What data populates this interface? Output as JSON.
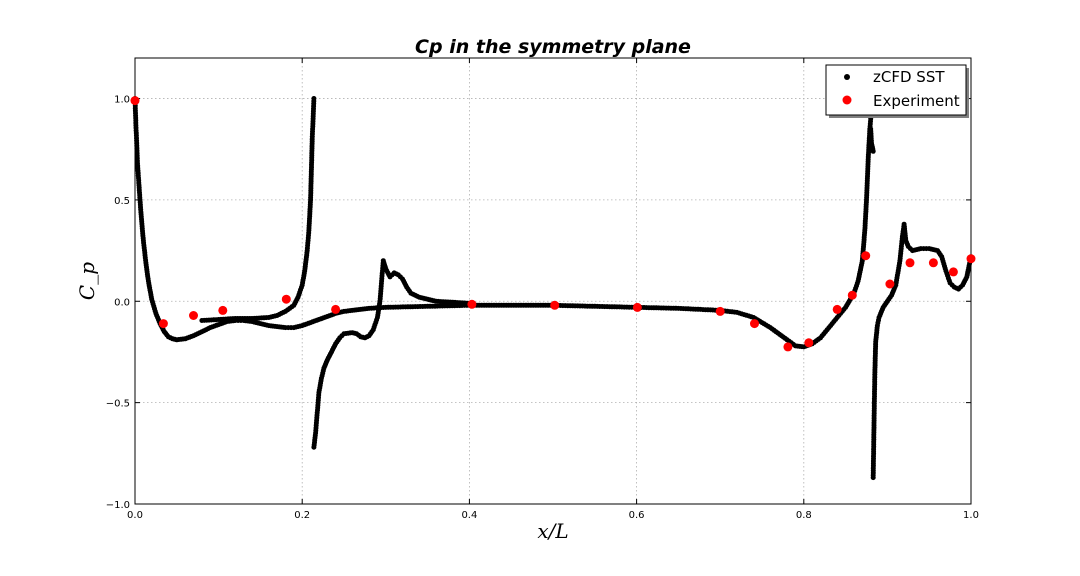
{
  "chart_data": {
    "type": "scatter",
    "title": "Cp in the symmetry plane",
    "xlabel": "x/L",
    "ylabel": "C_p",
    "xlim": [
      0.0,
      1.0
    ],
    "ylim": [
      -1.0,
      1.2
    ],
    "xticks": [
      "0.0",
      "0.2",
      "0.4",
      "0.6",
      "0.8",
      "1.0"
    ],
    "yticks": [
      "1.0",
      "0.5",
      "0.0",
      "−0.5",
      "−1.0"
    ],
    "xtick_values": [
      0.0,
      0.2,
      0.4,
      0.6,
      0.8,
      1.0
    ],
    "ytick_values": [
      1.0,
      0.5,
      0.0,
      -0.5,
      -1.0
    ],
    "grid": true,
    "legend_position": "top-right",
    "series": [
      {
        "name": "zCFD SST",
        "color": "#000000",
        "marker": "circle",
        "curves": [
          [
            [
              0.0,
              1.0
            ],
            [
              0.001,
              0.88
            ],
            [
              0.002,
              0.78
            ],
            [
              0.003,
              0.68
            ],
            [
              0.005,
              0.56
            ],
            [
              0.007,
              0.44
            ],
            [
              0.01,
              0.3
            ],
            [
              0.013,
              0.19
            ],
            [
              0.016,
              0.1
            ],
            [
              0.02,
              0.01
            ],
            [
              0.025,
              -0.06
            ],
            [
              0.03,
              -0.11
            ],
            [
              0.035,
              -0.15
            ],
            [
              0.04,
              -0.175
            ],
            [
              0.045,
              -0.185
            ],
            [
              0.05,
              -0.19
            ],
            [
              0.06,
              -0.185
            ],
            [
              0.07,
              -0.17
            ],
            [
              0.08,
              -0.15
            ],
            [
              0.09,
              -0.13
            ],
            [
              0.1,
              -0.115
            ],
            [
              0.11,
              -0.1
            ],
            [
              0.12,
              -0.095
            ],
            [
              0.13,
              -0.095
            ],
            [
              0.14,
              -0.1
            ],
            [
              0.15,
              -0.11
            ],
            [
              0.16,
              -0.12
            ],
            [
              0.17,
              -0.125
            ],
            [
              0.18,
              -0.13
            ],
            [
              0.19,
              -0.13
            ],
            [
              0.2,
              -0.12
            ],
            [
              0.21,
              -0.105
            ],
            [
              0.22,
              -0.09
            ],
            [
              0.23,
              -0.075
            ],
            [
              0.24,
              -0.06
            ],
            [
              0.25,
              -0.05
            ],
            [
              0.26,
              -0.045
            ],
            [
              0.27,
              -0.04
            ],
            [
              0.28,
              -0.035
            ],
            [
              0.3,
              -0.03
            ],
            [
              0.35,
              -0.025
            ],
            [
              0.4,
              -0.02
            ],
            [
              0.45,
              -0.02
            ],
            [
              0.5,
              -0.02
            ],
            [
              0.55,
              -0.025
            ],
            [
              0.6,
              -0.03
            ],
            [
              0.65,
              -0.035
            ],
            [
              0.7,
              -0.045
            ],
            [
              0.72,
              -0.055
            ],
            [
              0.74,
              -0.08
            ],
            [
              0.76,
              -0.13
            ],
            [
              0.78,
              -0.19
            ],
            [
              0.79,
              -0.22
            ],
            [
              0.8,
              -0.225
            ],
            [
              0.81,
              -0.21
            ],
            [
              0.82,
              -0.18
            ],
            [
              0.83,
              -0.13
            ],
            [
              0.84,
              -0.08
            ],
            [
              0.85,
              -0.03
            ],
            [
              0.86,
              0.04
            ],
            [
              0.865,
              0.1
            ],
            [
              0.87,
              0.2
            ],
            [
              0.873,
              0.35
            ],
            [
              0.875,
              0.5
            ],
            [
              0.877,
              0.7
            ],
            [
              0.879,
              0.85
            ],
            [
              0.88,
              0.9
            ]
          ],
          [
            [
              0.08,
              -0.095
            ],
            [
              0.1,
              -0.09
            ],
            [
              0.12,
              -0.085
            ],
            [
              0.14,
              -0.085
            ],
            [
              0.16,
              -0.08
            ],
            [
              0.17,
              -0.07
            ],
            [
              0.18,
              -0.05
            ],
            [
              0.19,
              -0.02
            ],
            [
              0.195,
              0.02
            ],
            [
              0.2,
              0.08
            ],
            [
              0.203,
              0.15
            ],
            [
              0.206,
              0.25
            ],
            [
              0.208,
              0.35
            ],
            [
              0.21,
              0.5
            ],
            [
              0.211,
              0.65
            ],
            [
              0.212,
              0.8
            ],
            [
              0.213,
              0.9
            ],
            [
              0.214,
              1.0
            ]
          ],
          [
            [
              0.214,
              -0.72
            ],
            [
              0.216,
              -0.65
            ],
            [
              0.218,
              -0.55
            ],
            [
              0.22,
              -0.45
            ],
            [
              0.223,
              -0.38
            ],
            [
              0.226,
              -0.33
            ],
            [
              0.23,
              -0.29
            ],
            [
              0.235,
              -0.25
            ],
            [
              0.24,
              -0.21
            ],
            [
              0.245,
              -0.18
            ],
            [
              0.25,
              -0.16
            ],
            [
              0.26,
              -0.155
            ],
            [
              0.265,
              -0.16
            ],
            [
              0.27,
              -0.175
            ],
            [
              0.275,
              -0.18
            ],
            [
              0.28,
              -0.17
            ],
            [
              0.285,
              -0.14
            ],
            [
              0.29,
              -0.08
            ],
            [
              0.293,
              0.0
            ],
            [
              0.295,
              0.1
            ],
            [
              0.297,
              0.2
            ],
            [
              0.3,
              0.16
            ],
            [
              0.305,
              0.12
            ],
            [
              0.31,
              0.14
            ],
            [
              0.315,
              0.13
            ],
            [
              0.32,
              0.11
            ],
            [
              0.325,
              0.07
            ],
            [
              0.33,
              0.04
            ],
            [
              0.34,
              0.02
            ],
            [
              0.35,
              0.01
            ],
            [
              0.36,
              0.0
            ],
            [
              0.38,
              -0.005
            ],
            [
              0.4,
              -0.01
            ]
          ],
          [
            [
              0.88,
              0.85
            ],
            [
              0.881,
              0.78
            ],
            [
              0.882,
              0.76
            ],
            [
              0.883,
              0.74
            ]
          ],
          [
            [
              0.883,
              -0.87
            ],
            [
              0.884,
              -0.6
            ],
            [
              0.885,
              -0.35
            ],
            [
              0.886,
              -0.2
            ],
            [
              0.888,
              -0.12
            ],
            [
              0.89,
              -0.08
            ],
            [
              0.895,
              -0.03
            ],
            [
              0.9,
              0.0
            ],
            [
              0.905,
              0.03
            ],
            [
              0.91,
              0.08
            ],
            [
              0.915,
              0.2
            ],
            [
              0.918,
              0.32
            ],
            [
              0.92,
              0.38
            ],
            [
              0.922,
              0.3
            ],
            [
              0.925,
              0.27
            ],
            [
              0.93,
              0.25
            ],
            [
              0.94,
              0.26
            ],
            [
              0.95,
              0.26
            ],
            [
              0.96,
              0.25
            ],
            [
              0.965,
              0.22
            ],
            [
              0.97,
              0.15
            ],
            [
              0.975,
              0.09
            ],
            [
              0.98,
              0.07
            ],
            [
              0.985,
              0.06
            ],
            [
              0.99,
              0.08
            ],
            [
              0.995,
              0.12
            ],
            [
              1.0,
              0.22
            ]
          ]
        ]
      },
      {
        "name": "Experiment",
        "color": "#ff0000",
        "marker": "circle",
        "points": [
          [
            0.0,
            0.99
          ],
          [
            0.034,
            -0.11
          ],
          [
            0.07,
            -0.07
          ],
          [
            0.105,
            -0.045
          ],
          [
            0.181,
            0.01
          ],
          [
            0.24,
            -0.04
          ],
          [
            0.403,
            -0.015
          ],
          [
            0.502,
            -0.02
          ],
          [
            0.601,
            -0.03
          ],
          [
            0.7,
            -0.05
          ],
          [
            0.741,
            -0.11
          ],
          [
            0.781,
            -0.225
          ],
          [
            0.806,
            -0.205
          ],
          [
            0.84,
            -0.04
          ],
          [
            0.858,
            0.03
          ],
          [
            0.874,
            0.225
          ],
          [
            0.903,
            0.085
          ],
          [
            0.927,
            0.19
          ],
          [
            0.955,
            0.19
          ],
          [
            0.979,
            0.145
          ],
          [
            1.0,
            0.21
          ]
        ]
      }
    ]
  }
}
